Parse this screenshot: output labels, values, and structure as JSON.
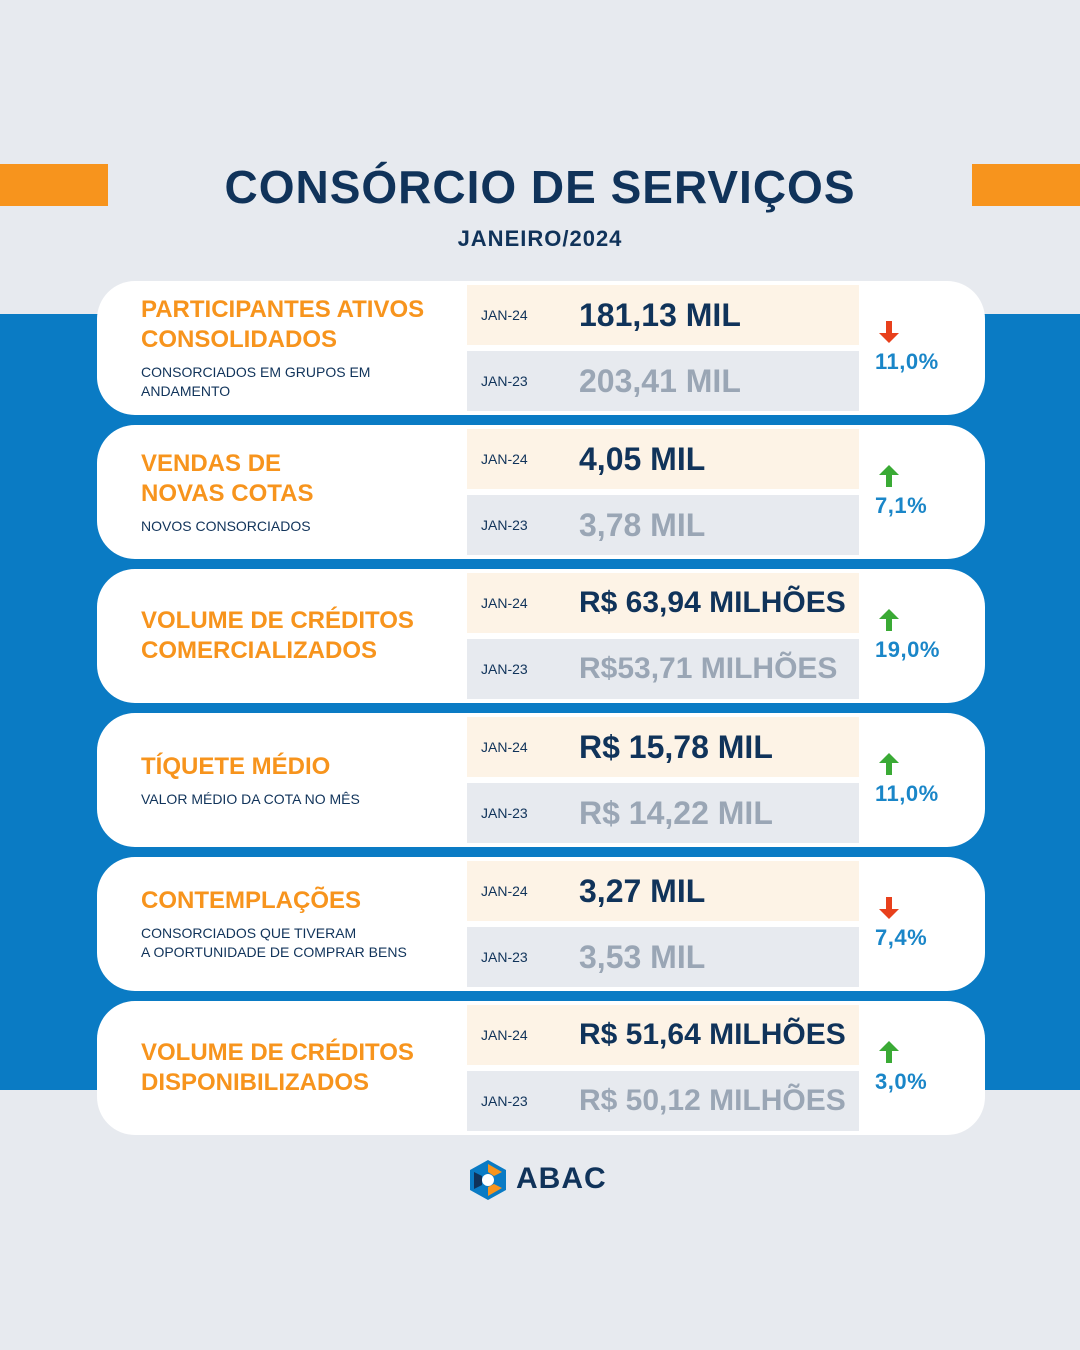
{
  "header": {
    "title": "CONSÓRCIO DE SERVIÇOS",
    "subtitle": "JANEIRO/2024"
  },
  "colors": {
    "navy": "#10335a",
    "orange": "#f7941d",
    "blue_band": "#0a7bc4",
    "percent_blue": "#1a86c8",
    "arrow_up": "#3aaa35",
    "arrow_down": "#e8401c",
    "muted_gray": "#9aa6b5"
  },
  "cards": [
    {
      "title": "PARTICIPANTES ATIVOS\nCONSOLIDADOS",
      "description": "CONSORCIADOS EM GRUPOS EM ANDAMENTO",
      "current_label": "JAN-24",
      "current_value": "181,13 MIL",
      "previous_label": "JAN-23",
      "previous_value": "203,41 MIL",
      "direction": "down",
      "arrow_icon": "arrow-down-icon",
      "change": "11,0%"
    },
    {
      "title": "VENDAS DE\nNOVAS COTAS",
      "description": "NOVOS CONSORCIADOS",
      "current_label": "JAN-24",
      "current_value": "4,05 MIL",
      "previous_label": "JAN-23",
      "previous_value": "3,78 MIL",
      "direction": "up",
      "arrow_icon": "arrow-up-icon",
      "change": "7,1%"
    },
    {
      "title": "VOLUME DE CRÉDITOS\nCOMERCIALIZADOS",
      "description": "",
      "current_label": "JAN-24",
      "current_value": "R$ 63,94 MILHÕES",
      "previous_label": "JAN-23",
      "previous_value": "R$53,71 MILHÕES",
      "direction": "up",
      "arrow_icon": "arrow-up-icon",
      "change": "19,0%"
    },
    {
      "title": "TÍQUETE MÉDIO",
      "description": "VALOR MÉDIO DA COTA NO MÊS",
      "current_label": "JAN-24",
      "current_value": "R$ 15,78 MIL",
      "previous_label": "JAN-23",
      "previous_value": "R$ 14,22 MIL",
      "direction": "up",
      "arrow_icon": "arrow-up-icon",
      "change": "11,0%"
    },
    {
      "title": "CONTEMPLAÇÕES",
      "description": "CONSORCIADOS QUE TIVERAM\nA OPORTUNIDADE DE COMPRAR BENS",
      "current_label": "JAN-24",
      "current_value": "3,27 MIL",
      "previous_label": "JAN-23",
      "previous_value": "3,53 MIL",
      "direction": "down",
      "arrow_icon": "arrow-down-icon",
      "change": "7,4%"
    },
    {
      "title": "VOLUME DE CRÉDITOS\nDISPONIBILIZADOS",
      "description": "",
      "current_label": "JAN-24",
      "current_value": "R$ 51,64 MILHÕES",
      "previous_label": "JAN-23",
      "previous_value": "R$ 50,12 MILHÕES",
      "direction": "up",
      "arrow_icon": "arrow-up-icon",
      "change": "3,0%"
    }
  ],
  "footer": {
    "logo_text": "ABAC",
    "logo_icon": "abac-logo-icon"
  }
}
